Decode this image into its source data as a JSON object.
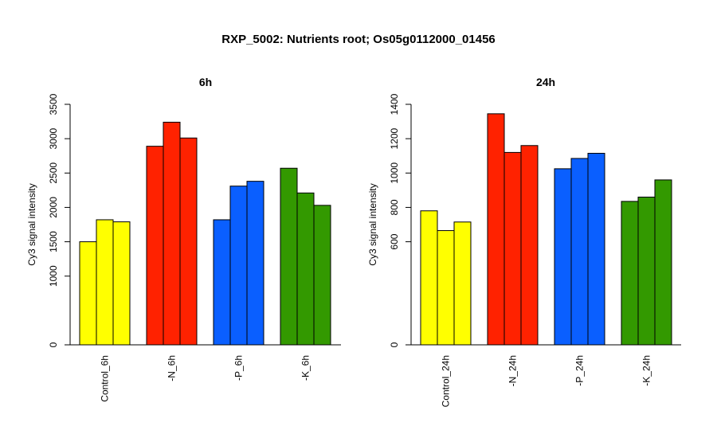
{
  "figure": {
    "title": "RXP_5002: Nutrients root; Os05g0112000_01456"
  },
  "chart_data": [
    {
      "type": "bar",
      "title": "6h",
      "ylabel": "Cy3 signal intensity",
      "xlabel": "",
      "ylim": [
        0,
        3500
      ],
      "yticks": [
        0,
        1000,
        1500,
        2000,
        2500,
        3000,
        3500
      ],
      "grid": false,
      "legend": "none",
      "groups": [
        {
          "label": "Control_6h",
          "color": "#FFFF00",
          "values": [
            1500,
            1820,
            1790
          ]
        },
        {
          "label": "-N_6h",
          "color": "#FF2200",
          "values": [
            2890,
            3240,
            3010
          ]
        },
        {
          "label": "-P_6h",
          "color": "#0A5FFF",
          "values": [
            1820,
            2310,
            2380
          ]
        },
        {
          "label": "-K_6h",
          "color": "#339900",
          "values": [
            2570,
            2210,
            2030
          ]
        }
      ]
    },
    {
      "type": "bar",
      "title": "24h",
      "ylabel": "Cy3 signal intensity",
      "xlabel": "",
      "ylim": [
        0,
        1400
      ],
      "yticks": [
        0,
        600,
        800,
        1000,
        1200,
        1400
      ],
      "grid": false,
      "legend": "none",
      "groups": [
        {
          "label": "Control_24h",
          "color": "#FFFF00",
          "values": [
            780,
            665,
            715
          ]
        },
        {
          "label": "-N_24h",
          "color": "#FF2200",
          "values": [
            1345,
            1120,
            1160
          ]
        },
        {
          "label": "-P_24h",
          "color": "#0A5FFF",
          "values": [
            1025,
            1085,
            1115
          ]
        },
        {
          "label": "-K_24h",
          "color": "#339900",
          "values": [
            835,
            860,
            960
          ]
        }
      ]
    }
  ]
}
